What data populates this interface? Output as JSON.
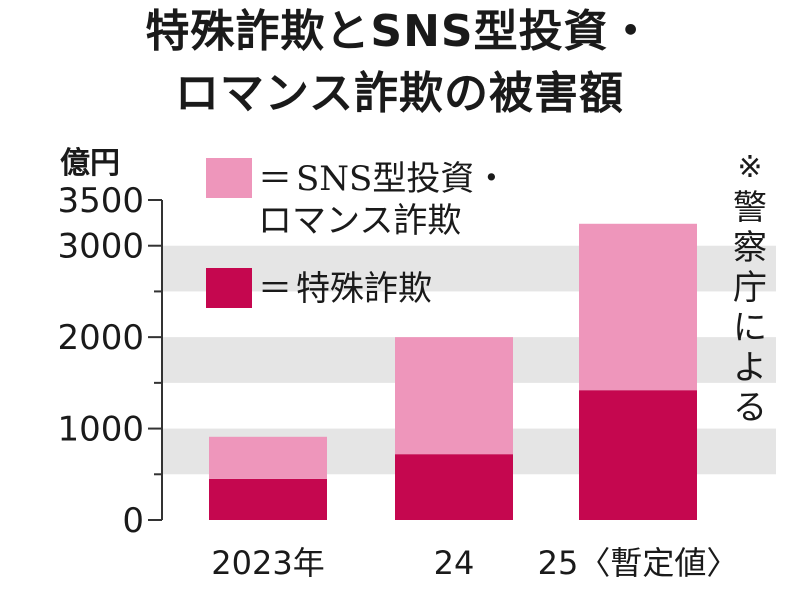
{
  "title": {
    "line1": "特殊詐欺とSNS型投資・",
    "line2": "ロマンス詐欺の被害額"
  },
  "unit_label": "億円",
  "legend": [
    {
      "line1": "SNS型投資・",
      "line2": "ロマンス詐欺",
      "color": "#ee96bb"
    },
    {
      "line1": "特殊詐欺",
      "color": "#c5074f"
    }
  ],
  "legend_eq": "＝",
  "note_mark": "※",
  "note": "警察庁による",
  "colors": {
    "band": "#e5e5e5",
    "axis": "#333333",
    "pink": "#ee96bb",
    "crimson": "#c5074f"
  },
  "chart_data": {
    "type": "bar",
    "stacked": true,
    "categories": [
      "2023年",
      "24",
      "25〈暫定値〉"
    ],
    "series": [
      {
        "name": "特殊詐欺",
        "values": [
          450,
          720,
          1420
        ]
      },
      {
        "name": "SNS型投資・ロマンス詐欺",
        "values": [
          460,
          1280,
          1820
        ]
      }
    ],
    "ylabel": "億円",
    "ylim": [
      0,
      3500
    ],
    "yticks": [
      "3500",
      "3000",
      "2000",
      "1000",
      "0"
    ],
    "ytick_values": [
      3500,
      3000,
      2000,
      1000,
      0
    ],
    "grid": "alternating bands"
  }
}
